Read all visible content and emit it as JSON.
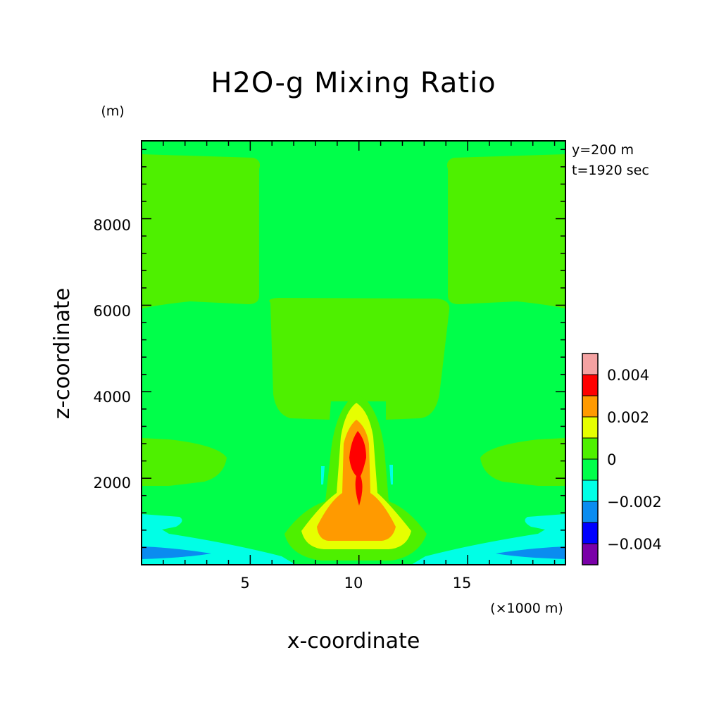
{
  "chart_data": {
    "type": "heatmap",
    "title": "H2O-g Mixing Ratio",
    "xlabel": "x-coordinate",
    "ylabel": "z-coordinate",
    "x_unit": "(×1000 m)",
    "y_unit": "(m)",
    "annotations": [
      "y=200 m",
      "t=1920 sec"
    ],
    "xlim": [
      0,
      19.5
    ],
    "ylim": [
      0,
      9800
    ],
    "x_ticks": [
      5,
      10,
      15
    ],
    "x_tick_labels": [
      "5",
      "10",
      "15"
    ],
    "y_ticks": [
      2000,
      4000,
      6000,
      8000
    ],
    "y_tick_labels": [
      "2000",
      "4000",
      "6000",
      "8000"
    ],
    "colorbar": {
      "levels": [
        {
          "range": [
            0.004,
            0.005
          ],
          "color": "#f4a2a2"
        },
        {
          "range": [
            0.003,
            0.004
          ],
          "color": "#ff0000"
        },
        {
          "range": [
            0.002,
            0.003
          ],
          "color": "#ff9a00"
        },
        {
          "range": [
            0.001,
            0.002
          ],
          "color": "#e6ff00"
        },
        {
          "range": [
            0.0,
            0.001
          ],
          "color": "#4ef000"
        },
        {
          "range": [
            -0.001,
            0.0
          ],
          "color": "#00ff4a"
        },
        {
          "range": [
            -0.002,
            -0.001
          ],
          "color": "#00ffe6"
        },
        {
          "range": [
            -0.003,
            -0.002
          ],
          "color": "#0a8cf0"
        },
        {
          "range": [
            -0.004,
            -0.003
          ],
          "color": "#0000ff"
        },
        {
          "range": [
            -0.005,
            -0.004
          ],
          "color": "#7a00a8"
        }
      ],
      "tick_labels": [
        "0.004",
        "0.002",
        "0",
        "-0.002",
        "-0.004"
      ]
    }
  }
}
